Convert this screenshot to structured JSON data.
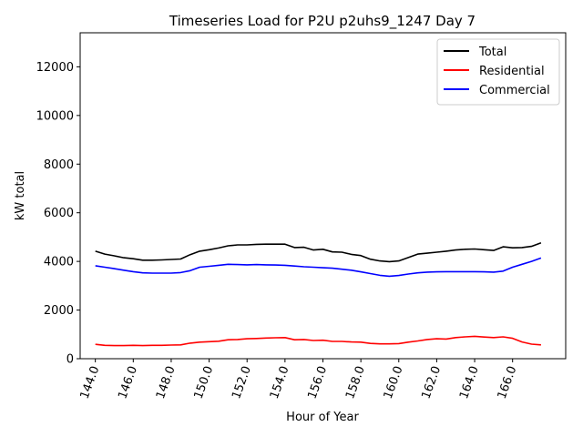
{
  "chart_data": {
    "type": "line",
    "title": "Timeseries Load for P2U p2uhs9_1247  Day 7",
    "xlabel": "Hour of Year",
    "ylabel": "kW total",
    "xlim": [
      143.2,
      168.8
    ],
    "ylim": [
      0,
      13400
    ],
    "x_ticks": [
      144,
      146,
      148,
      150,
      152,
      154,
      156,
      158,
      160,
      162,
      164,
      166
    ],
    "x_tick_labels": [
      "144.0",
      "146.0",
      "148.0",
      "150.0",
      "152.0",
      "154.0",
      "156.0",
      "158.0",
      "160.0",
      "162.0",
      "164.0",
      "166.0"
    ],
    "y_ticks": [
      0,
      2000,
      4000,
      6000,
      8000,
      10000,
      12000
    ],
    "y_tick_labels": [
      "0",
      "2000",
      "4000",
      "6000",
      "8000",
      "10000",
      "12000"
    ],
    "legend_position": "top-right",
    "x": [
      144.0,
      144.5,
      145.0,
      145.5,
      146.0,
      146.5,
      147.0,
      147.5,
      148.0,
      148.5,
      149.0,
      149.5,
      150.0,
      150.5,
      151.0,
      151.5,
      152.0,
      152.5,
      153.0,
      153.5,
      154.0,
      154.5,
      155.0,
      155.5,
      156.0,
      156.5,
      157.0,
      157.5,
      158.0,
      158.5,
      159.0,
      159.5,
      160.0,
      160.5,
      161.0,
      161.5,
      162.0,
      162.5,
      163.0,
      163.5,
      164.0,
      164.5,
      165.0,
      165.5,
      166.0,
      166.5,
      167.0,
      167.5
    ],
    "series": [
      {
        "name": "Total",
        "color": "#000000",
        "values": [
          4420,
          4300,
          4230,
          4150,
          4110,
          4050,
          4050,
          4060,
          4080,
          4100,
          4280,
          4420,
          4480,
          4550,
          4640,
          4680,
          4680,
          4700,
          4710,
          4710,
          4710,
          4570,
          4580,
          4470,
          4500,
          4390,
          4380,
          4290,
          4240,
          4090,
          4020,
          3990,
          4020,
          4160,
          4300,
          4340,
          4380,
          4420,
          4470,
          4500,
          4510,
          4480,
          4450,
          4600,
          4560,
          4570,
          4620,
          4760
        ]
      },
      {
        "name": "Residential",
        "color": "#ff0000",
        "values": [
          590,
          550,
          540,
          540,
          550,
          540,
          550,
          550,
          560,
          570,
          640,
          680,
          700,
          720,
          780,
          790,
          820,
          830,
          850,
          860,
          870,
          780,
          790,
          750,
          760,
          710,
          710,
          690,
          680,
          630,
          610,
          610,
          620,
          680,
          730,
          790,
          820,
          810,
          870,
          900,
          920,
          890,
          870,
          900,
          840,
          690,
          600,
          570
        ]
      },
      {
        "name": "Commercial",
        "color": "#0000ff",
        "values": [
          3820,
          3760,
          3700,
          3640,
          3580,
          3530,
          3520,
          3520,
          3520,
          3540,
          3620,
          3760,
          3800,
          3840,
          3880,
          3870,
          3860,
          3870,
          3860,
          3850,
          3840,
          3810,
          3780,
          3760,
          3740,
          3720,
          3680,
          3640,
          3570,
          3500,
          3430,
          3390,
          3420,
          3480,
          3530,
          3560,
          3570,
          3580,
          3580,
          3580,
          3580,
          3570,
          3560,
          3600,
          3760,
          3880,
          4000,
          4140
        ]
      }
    ]
  }
}
